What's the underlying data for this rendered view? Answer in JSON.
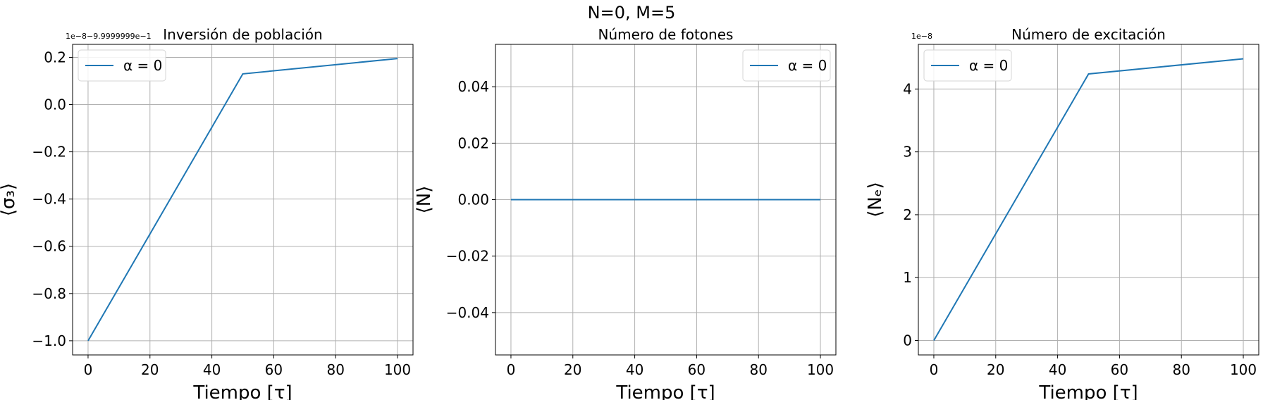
{
  "figure": {
    "title": "N=0, M=5"
  },
  "chart_data": [
    {
      "type": "line",
      "title": "Inversión de población",
      "xlabel": "Tiempo [τ]",
      "ylabel": "⟨σ₃⟩",
      "offset_text": "1e−8−9.9999999e−1",
      "xlim": [
        -5,
        105
      ],
      "ylim": [
        -1.06,
        0.255
      ],
      "xticks": [
        0,
        20,
        40,
        60,
        80,
        100
      ],
      "xtick_labels": [
        "0",
        "20",
        "40",
        "60",
        "80",
        "100"
      ],
      "yticks": [
        -1.0,
        -0.8,
        -0.6,
        -0.4,
        -0.2,
        0.0,
        0.2
      ],
      "ytick_labels": [
        "−1.0",
        "−0.8",
        "−0.6",
        "−0.4",
        "−0.2",
        "0.0",
        "0.2"
      ],
      "grid": true,
      "legend": "upper-left",
      "series": [
        {
          "name": "α = 0",
          "color": "#1f77b4",
          "x": [
            0,
            50,
            100
          ],
          "y": [
            -1.0,
            0.13,
            0.195
          ]
        }
      ]
    },
    {
      "type": "line",
      "title": "Número de  fotones",
      "xlabel": "Tiempo [τ]",
      "ylabel": "⟨N⟩",
      "offset_text": "",
      "xlim": [
        -5,
        105
      ],
      "ylim": [
        -0.055,
        0.055
      ],
      "xticks": [
        0,
        20,
        40,
        60,
        80,
        100
      ],
      "xtick_labels": [
        "0",
        "20",
        "40",
        "60",
        "80",
        "100"
      ],
      "yticks": [
        -0.04,
        -0.02,
        0.0,
        0.02,
        0.04
      ],
      "ytick_labels": [
        "−0.04",
        "−0.02",
        "0.00",
        "0.02",
        "0.04"
      ],
      "grid": true,
      "legend": "upper-right",
      "series": [
        {
          "name": "α = 0",
          "color": "#1f77b4",
          "x": [
            0,
            50,
            100
          ],
          "y": [
            0,
            0,
            0
          ]
        }
      ]
    },
    {
      "type": "line",
      "title": "Número de  excitación",
      "xlabel": "Tiempo [τ]",
      "ylabel": "⟨Nₑ⟩",
      "offset_text": "1e−8",
      "xlim": [
        -5,
        105
      ],
      "ylim": [
        -0.23,
        4.71
      ],
      "xticks": [
        0,
        20,
        40,
        60,
        80,
        100
      ],
      "xtick_labels": [
        "0",
        "20",
        "40",
        "60",
        "80",
        "100"
      ],
      "yticks": [
        0,
        1,
        2,
        3,
        4
      ],
      "ytick_labels": [
        "0",
        "1",
        "2",
        "3",
        "4"
      ],
      "grid": true,
      "legend": "upper-left",
      "series": [
        {
          "name": "α = 0",
          "color": "#1f77b4",
          "x": [
            0,
            50,
            100
          ],
          "y": [
            0,
            4.24,
            4.48
          ]
        }
      ]
    }
  ]
}
